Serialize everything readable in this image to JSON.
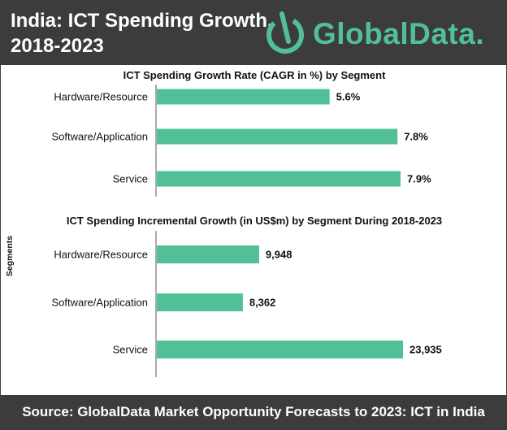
{
  "header": {
    "title_line1": "India: ICT Spending Growth,",
    "title_line2": "2018-2023",
    "logo_text": "GlobalData."
  },
  "footer": {
    "source": "Source:  GlobalData Market Opportunity Forecasts to 2023: ICT in India"
  },
  "y_axis_label": "Segments",
  "colors": {
    "bar": "#52c097",
    "header_bg": "#3c3c3c",
    "logo": "#52c097",
    "text": "#111111"
  },
  "chart_data": [
    {
      "type": "bar",
      "orientation": "horizontal",
      "title": "ICT Spending Growth Rate (CAGR in %) by Segment",
      "categories": [
        "Hardware/Resource",
        "Software/Application",
        "Service"
      ],
      "values": [
        5.6,
        7.8,
        7.9
      ],
      "data_labels": [
        "5.6%",
        "7.8%",
        "7.9%"
      ],
      "unit": "%"
    },
    {
      "type": "bar",
      "orientation": "horizontal",
      "title": "ICT Spending Incremental Growth (in US$m) by Segment During 2018-2023",
      "categories": [
        "Hardware/Resource",
        "Software/Application",
        "Service"
      ],
      "values": [
        9948,
        8362,
        23935
      ],
      "data_labels": [
        "9,948",
        "8,362",
        "23,935"
      ],
      "unit": "US$m"
    }
  ]
}
